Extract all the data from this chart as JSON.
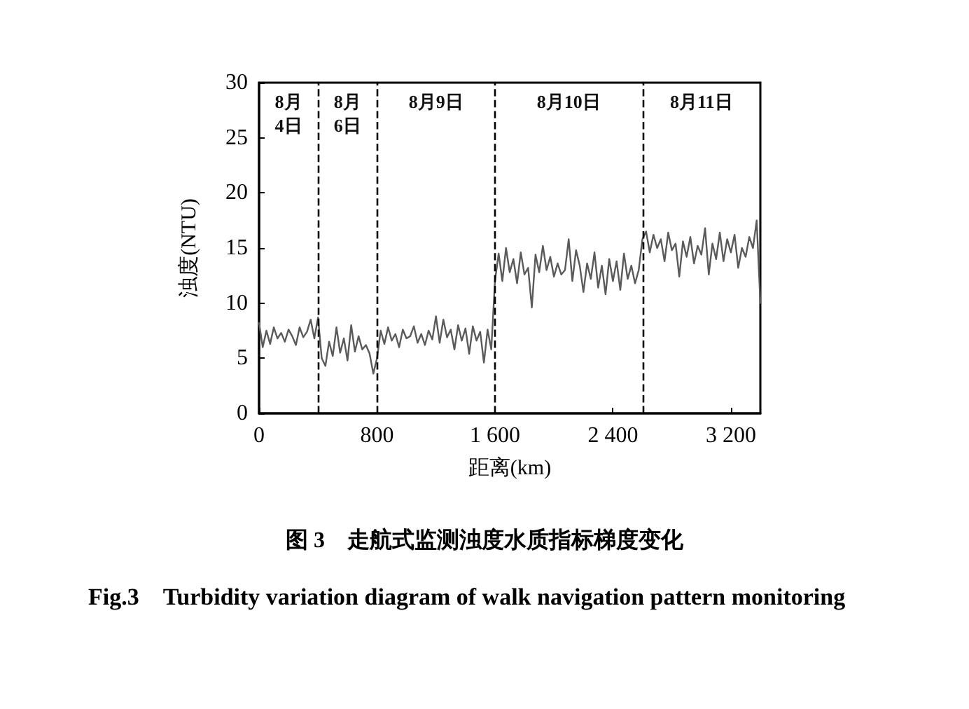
{
  "chart_data": {
    "type": "line",
    "title": "图 3　走航式监测浊度水质指标梯度变化",
    "subtitle": "Fig.3　Turbidity variation diagram of walk navigation pattern monitoring",
    "xlabel": "距离(km)",
    "ylabel": "浊度(NTU)",
    "x": [
      0,
      25,
      50,
      75,
      100,
      125,
      150,
      175,
      200,
      225,
      250,
      275,
      300,
      325,
      350,
      375,
      400,
      425,
      450,
      475,
      500,
      525,
      550,
      575,
      600,
      625,
      650,
      675,
      700,
      725,
      750,
      775,
      800,
      825,
      850,
      875,
      900,
      925,
      950,
      975,
      1000,
      1025,
      1050,
      1075,
      1100,
      1125,
      1150,
      1175,
      1200,
      1225,
      1250,
      1275,
      1300,
      1325,
      1350,
      1375,
      1400,
      1425,
      1450,
      1475,
      1500,
      1525,
      1550,
      1575,
      1600,
      1625,
      1650,
      1675,
      1700,
      1725,
      1750,
      1775,
      1800,
      1825,
      1850,
      1875,
      1900,
      1925,
      1950,
      1975,
      2000,
      2025,
      2050,
      2075,
      2100,
      2125,
      2150,
      2175,
      2200,
      2225,
      2250,
      2275,
      2300,
      2325,
      2350,
      2375,
      2400,
      2425,
      2450,
      2475,
      2500,
      2525,
      2550,
      2575,
      2600,
      2625,
      2650,
      2675,
      2700,
      2725,
      2750,
      2775,
      2800,
      2825,
      2850,
      2875,
      2900,
      2925,
      2950,
      2975,
      3000,
      3025,
      3050,
      3075,
      3100,
      3125,
      3150,
      3175,
      3200,
      3225,
      3250,
      3275,
      3300,
      3325,
      3350,
      3375,
      3400
    ],
    "series": [
      {
        "color": "#5a5a5a",
        "values": [
          8.2,
          6.0,
          7.5,
          6.3,
          7.8,
          6.8,
          7.3,
          6.5,
          7.6,
          7.0,
          6.2,
          7.8,
          6.9,
          7.4,
          8.5,
          6.8,
          8.7,
          5.0,
          4.3,
          6.5,
          5.2,
          7.8,
          5.5,
          6.8,
          4.8,
          8.0,
          5.6,
          7.0,
          5.8,
          6.2,
          5.4,
          3.6,
          5.0,
          7.5,
          6.3,
          7.8,
          6.6,
          7.2,
          6.0,
          7.6,
          6.8,
          7.0,
          7.9,
          6.4,
          7.2,
          6.2,
          7.5,
          6.7,
          8.8,
          6.4,
          8.5,
          6.9,
          7.6,
          5.8,
          8.0,
          6.6,
          7.7,
          5.4,
          7.9,
          6.6,
          7.4,
          4.6,
          7.6,
          5.8,
          12.0,
          14.5,
          12.0,
          15.0,
          12.8,
          14.0,
          11.8,
          14.6,
          12.6,
          13.2,
          9.6,
          14.4,
          12.8,
          15.2,
          13.0,
          14.2,
          12.4,
          13.6,
          12.6,
          13.0,
          15.8,
          12.0,
          14.8,
          13.4,
          11.0,
          13.6,
          12.2,
          14.6,
          11.4,
          13.4,
          10.8,
          14.0,
          12.0,
          13.8,
          11.2,
          14.5,
          12.2,
          13.4,
          11.8,
          13.0,
          15.8,
          16.5,
          14.6,
          16.2,
          15.0,
          15.8,
          13.8,
          16.4,
          14.8,
          15.4,
          12.4,
          15.6,
          14.2,
          16.0,
          13.6,
          15.2,
          14.4,
          16.8,
          12.6,
          15.4,
          14.0,
          16.4,
          13.8,
          15.8,
          14.6,
          16.2,
          13.2,
          15.0,
          14.2,
          16.0,
          15.0,
          17.5,
          10.0
        ]
      }
    ],
    "xlim": [
      0,
      3400
    ],
    "xticks": [
      0,
      800,
      {
        "value": 1600,
        "label": "1 600"
      },
      {
        "value": 2400,
        "label": "2 400"
      },
      {
        "value": 3200,
        "label": "3 200"
      }
    ],
    "ylim": [
      0,
      30
    ],
    "yticks": [
      0,
      5,
      10,
      15,
      20,
      25,
      30
    ],
    "ref_lines": [
      {
        "axis": "x",
        "value": 400,
        "line_style": "dashed"
      },
      {
        "axis": "x",
        "value": 800,
        "line_style": "dashed"
      },
      {
        "axis": "x",
        "value": 1600,
        "line_style": "dashed"
      },
      {
        "axis": "x",
        "value": 2600,
        "line_style": "dashed"
      }
    ],
    "annotations": [
      "8月\n4日",
      "8月\n6日",
      "8月9日",
      "8月10日",
      "8月11日"
    ],
    "marker": "none",
    "line_style": "solid",
    "grid": false
  }
}
